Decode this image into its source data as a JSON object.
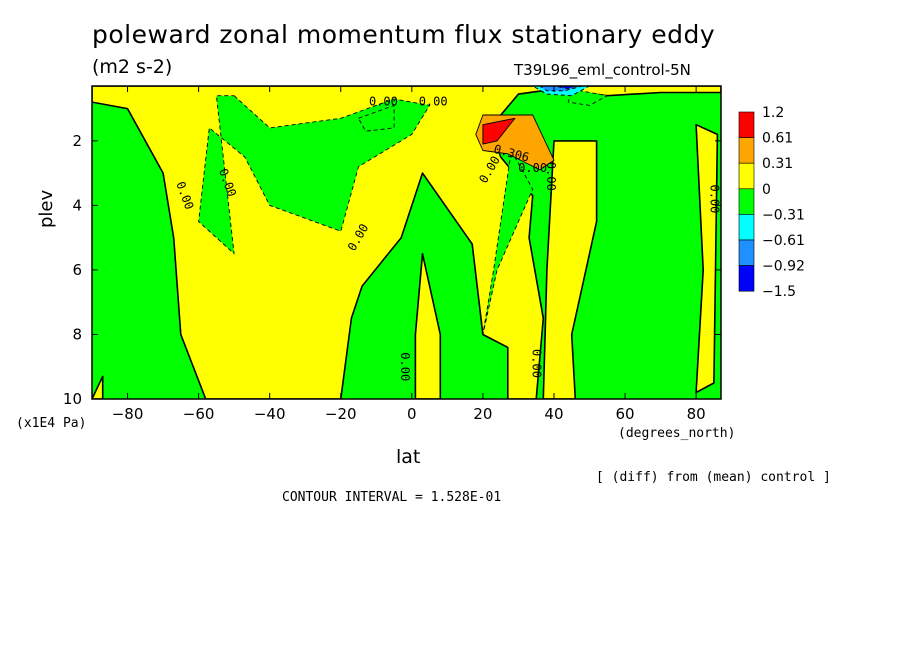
{
  "header": {
    "title": "poleward zonal momentum flux stationary eddy",
    "units": "(m2 s-2)",
    "run": "T39L96_eml_control-5N"
  },
  "footer": {
    "note": "[ (diff) from (mean) control ]",
    "contour_interval": "CONTOUR INTERVAL = 1.528E-01"
  },
  "chart_data": {
    "type": "heatmap",
    "title": "poleward zonal momentum flux stationary eddy",
    "subtitle": "(m2 s-2)",
    "xlabel": "lat",
    "x_units": "(degrees_north)",
    "ylabel": "plev",
    "y_units": "(x1E4 Pa)",
    "xlim": [
      -90,
      87
    ],
    "ylim": [
      0.3,
      10
    ],
    "y_inverted": true,
    "x_ticks": [
      -80,
      -60,
      -40,
      -20,
      0,
      20,
      40,
      60,
      80
    ],
    "x_tick_labels": [
      "−80",
      "−60",
      "−40",
      "−20",
      "0",
      "20",
      "40",
      "60",
      "80"
    ],
    "y_ticks": [
      2,
      4,
      6,
      8,
      10
    ],
    "y_tick_labels": [
      "2",
      "4",
      "6",
      "8",
      "10"
    ],
    "legend": {
      "placement": "right",
      "labels": [
        "1.2",
        "0.61",
        "0.31",
        "0",
        "−0.31",
        "−0.61",
        "−0.92",
        "−1.5"
      ],
      "colors": [
        "#ff0000",
        "#ffa500",
        "#ffff00",
        "#00ff00",
        "#00ffff",
        "#1e90ff",
        "#0000ff"
      ]
    },
    "contour_labels": [
      "0.00",
      "0.00",
      "0.00",
      "0.00",
      "0.00",
      "0.00",
      "0.00",
      "0.00",
      "0.306",
      "0.00",
      "0.00",
      "0.00"
    ],
    "background_color": "#00ff00",
    "regions": [
      {
        "level": 0.15,
        "points": [
          [
            -90,
            0.3
          ],
          [
            87,
            0.3
          ],
          [
            87,
            0.5
          ],
          [
            70,
            0.5
          ],
          [
            55,
            0.6
          ],
          [
            40,
            0.4
          ],
          [
            30,
            0.55
          ],
          [
            22,
            1.6
          ],
          [
            25,
            2.5
          ],
          [
            34,
            3.7
          ],
          [
            33,
            5.0
          ],
          [
            37,
            7.5
          ],
          [
            35,
            10
          ],
          [
            27,
            10
          ],
          [
            27,
            8.4
          ],
          [
            20,
            8.0
          ],
          [
            17,
            5.2
          ],
          [
            3,
            3.0
          ],
          [
            -3,
            5.0
          ],
          [
            -14,
            6.5
          ],
          [
            -17,
            7.5
          ],
          [
            -20,
            10
          ],
          [
            -58,
            10
          ],
          [
            -65,
            8.0
          ],
          [
            -67,
            5.0
          ],
          [
            -70,
            3.0
          ],
          [
            -80,
            1.0
          ],
          [
            -90,
            0.8
          ]
        ]
      },
      {
        "level": 0.15,
        "points": [
          [
            40,
            2.0
          ],
          [
            52,
            2.0
          ],
          [
            52,
            4.5
          ],
          [
            45,
            8.0
          ],
          [
            46,
            10
          ],
          [
            37,
            10
          ],
          [
            38,
            6.0
          ]
        ]
      },
      {
        "level": 0.15,
        "points": [
          [
            3,
            5.5
          ],
          [
            8,
            8.0
          ],
          [
            8,
            10
          ],
          [
            1,
            10
          ],
          [
            1,
            8.0
          ]
        ]
      },
      {
        "level": 0.15,
        "points": [
          [
            -90,
            10
          ],
          [
            -87,
            9.3
          ],
          [
            -87,
            10
          ]
        ]
      },
      {
        "level": 0.15,
        "points": [
          [
            80,
            1.5
          ],
          [
            86,
            1.8
          ],
          [
            85,
            9.5
          ],
          [
            80,
            9.8
          ],
          [
            82,
            6.0
          ]
        ]
      },
      {
        "level": -0.15,
        "points": [
          [
            -50,
            0.6
          ],
          [
            -40,
            1.6
          ],
          [
            -20,
            1.3
          ],
          [
            -5,
            0.7
          ],
          [
            5,
            0.9
          ],
          [
            0,
            1.8
          ],
          [
            -15,
            2.8
          ],
          [
            -20,
            4.8
          ],
          [
            -40,
            4.0
          ],
          [
            -47,
            2.5
          ],
          [
            -57,
            1.6
          ],
          [
            -60,
            4.5
          ],
          [
            -50,
            5.5
          ],
          [
            -55,
            0.6
          ]
        ]
      },
      {
        "level": -0.15,
        "points": [
          [
            -15,
            1.3
          ],
          [
            -5,
            0.9
          ],
          [
            -5,
            1.6
          ],
          [
            -13,
            1.7
          ]
        ]
      },
      {
        "level": -0.15,
        "points": [
          [
            28,
            2.3
          ],
          [
            34,
            3.5
          ],
          [
            24,
            6.0
          ],
          [
            20,
            8.0
          ],
          [
            23,
            6.0
          ]
        ]
      },
      {
        "level": -0.15,
        "points": [
          [
            45,
            0.4
          ],
          [
            55,
            0.6
          ],
          [
            50,
            0.9
          ],
          [
            44,
            0.8
          ]
        ]
      },
      {
        "level": 0.46,
        "points": [
          [
            20,
            1.2
          ],
          [
            34,
            1.2
          ],
          [
            40,
            2.6
          ],
          [
            36,
            2.9
          ],
          [
            27,
            2.4
          ],
          [
            20,
            2.3
          ],
          [
            18,
            1.8
          ]
        ]
      },
      {
        "level": 0.92,
        "points": [
          [
            20,
            1.5
          ],
          [
            29,
            1.3
          ],
          [
            24,
            2.0
          ],
          [
            20,
            2.1
          ]
        ]
      },
      {
        "level": -0.46,
        "points": [
          [
            34,
            0.3
          ],
          [
            50,
            0.3
          ],
          [
            45,
            0.6
          ],
          [
            38,
            0.55
          ]
        ]
      },
      {
        "level": -0.76,
        "points": [
          [
            36,
            0.3
          ],
          [
            48,
            0.3
          ],
          [
            43,
            0.45
          ],
          [
            38,
            0.45
          ]
        ]
      },
      {
        "level": -1.2,
        "points": [
          [
            40,
            0.3
          ],
          [
            46,
            0.3
          ],
          [
            44,
            0.38
          ]
        ]
      }
    ]
  }
}
